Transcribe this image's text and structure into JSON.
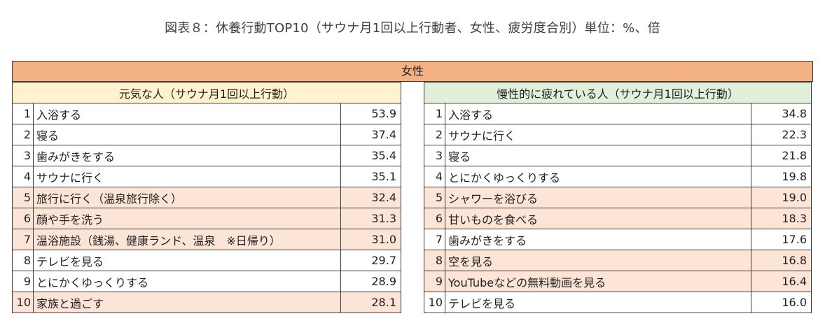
{
  "title": "図表８：休養行動TOP10（サウナ月1回以上行動者、女性、疲労度合別）単位：%、倍",
  "group_header": "女性",
  "colors": {
    "group_bg": "#f4b183",
    "left_header_bg": "#fff2cc",
    "right_header_bg": "#e2efda",
    "highlight_bg": "#fce4d6"
  },
  "left": {
    "header": "元気な人（サウナ月1回以上行動）",
    "rows": [
      {
        "rank": "1",
        "label": "入浴する",
        "value": "53.9",
        "highlight": false
      },
      {
        "rank": "2",
        "label": "寝る",
        "value": "37.4",
        "highlight": false
      },
      {
        "rank": "3",
        "label": "歯みがきをする",
        "value": "35.4",
        "highlight": false
      },
      {
        "rank": "4",
        "label": "サウナに行く",
        "value": "35.1",
        "highlight": false
      },
      {
        "rank": "5",
        "label": "旅行に行く（温泉旅行除く）",
        "value": "32.4",
        "highlight": true
      },
      {
        "rank": "6",
        "label": "顔や手を洗う",
        "value": "31.3",
        "highlight": true
      },
      {
        "rank": "7",
        "label": "温浴施設（銭湯、健康ランド、温泉　※日帰り）",
        "value": "31.0",
        "highlight": true
      },
      {
        "rank": "8",
        "label": "テレビを見る",
        "value": "29.7",
        "highlight": false
      },
      {
        "rank": "9",
        "label": "とにかくゆっくりする",
        "value": "28.9",
        "highlight": false
      },
      {
        "rank": "10",
        "label": "家族と過ごす",
        "value": "28.1",
        "highlight": true
      }
    ]
  },
  "right": {
    "header": "慢性的に疲れている人（サウナ月1回以上行動）",
    "rows": [
      {
        "rank": "1",
        "label": "入浴する",
        "value": "34.8",
        "highlight": false
      },
      {
        "rank": "2",
        "label": "サウナに行く",
        "value": "22.3",
        "highlight": false
      },
      {
        "rank": "3",
        "label": "寝る",
        "value": "21.8",
        "highlight": false
      },
      {
        "rank": "4",
        "label": "とにかくゆっくりする",
        "value": "19.8",
        "highlight": false
      },
      {
        "rank": "5",
        "label": "シャワーを浴びる",
        "value": "19.0",
        "highlight": true
      },
      {
        "rank": "6",
        "label": "甘いものを食べる",
        "value": "18.3",
        "highlight": true
      },
      {
        "rank": "7",
        "label": "歯みがきをする",
        "value": "17.6",
        "highlight": false
      },
      {
        "rank": "8",
        "label": "空を見る",
        "value": "16.8",
        "highlight": true
      },
      {
        "rank": "9",
        "label": "YouTubeなどの無料動画を見る",
        "value": "16.4",
        "highlight": true
      },
      {
        "rank": "10",
        "label": "テレビを見る",
        "value": "16.0",
        "highlight": false
      }
    ]
  }
}
